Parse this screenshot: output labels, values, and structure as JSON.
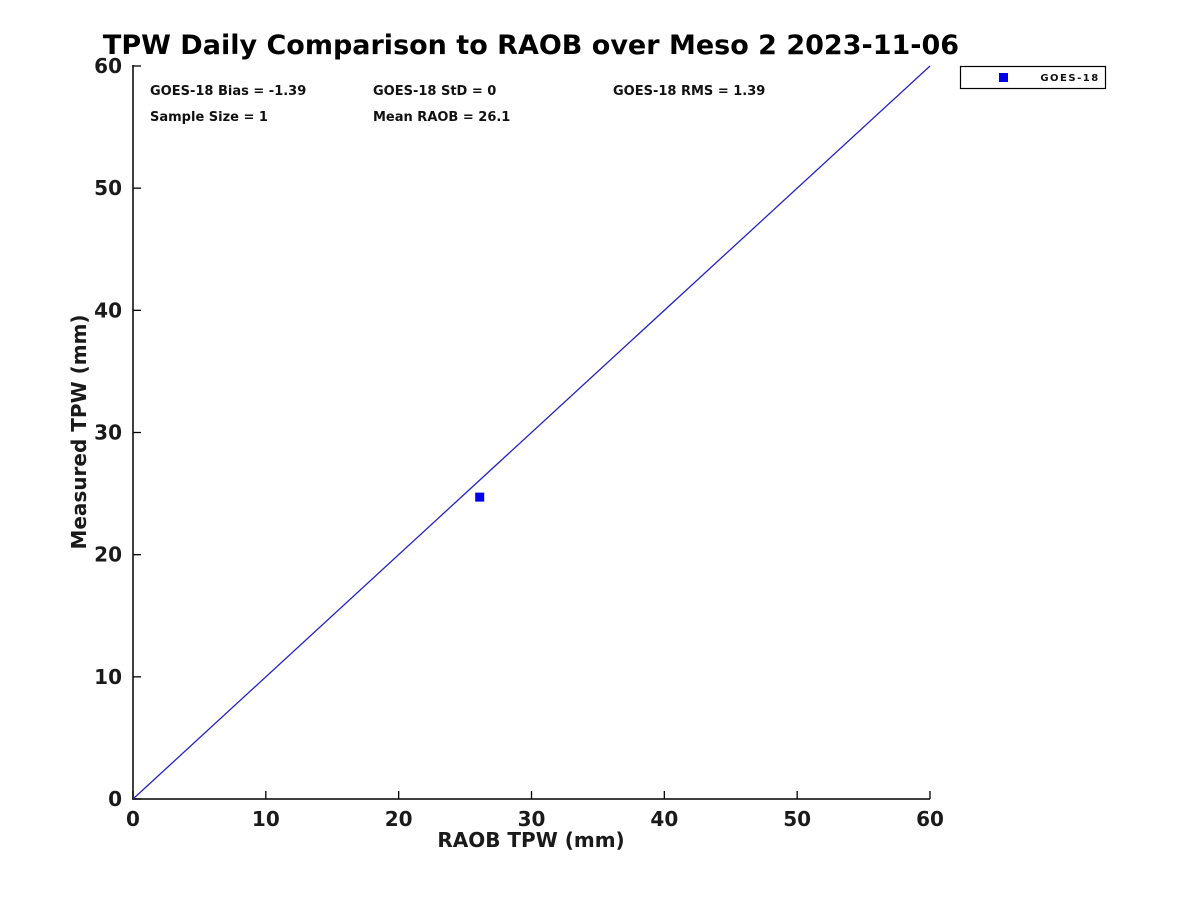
{
  "title": "TPW Daily Comparison to RAOB over Meso 2 2023-11-06",
  "stats": {
    "bias": "GOES-18 Bias = -1.39",
    "std": "GOES-18 StD = 0",
    "rms": "GOES-18 RMS = 1.39",
    "sample_size": "Sample Size = 1",
    "mean_raob": "Mean RAOB = 26.1"
  },
  "legend": {
    "label": "GOES-18",
    "marker_color": "#0000ee",
    "position": "top-right-outside"
  },
  "chart_data": {
    "type": "scatter",
    "title": "TPW Daily Comparison to RAOB over Meso 2 2023-11-06",
    "xlabel": "RAOB TPW (mm)",
    "ylabel": "Measured TPW (mm)",
    "xlim": [
      0,
      60
    ],
    "ylim": [
      0,
      60
    ],
    "x_ticks": [
      0,
      10,
      20,
      30,
      40,
      50,
      60
    ],
    "y_ticks": [
      0,
      10,
      20,
      30,
      40,
      50,
      60
    ],
    "grid": false,
    "series": [
      {
        "name": "GOES-18",
        "marker": "square",
        "color": "#0000ee",
        "points": [
          [
            26.1,
            24.71
          ]
        ]
      }
    ],
    "reference_line": {
      "name": "identity-line",
      "from": [
        0,
        0
      ],
      "to": [
        60,
        60
      ],
      "color": "#2222cc"
    },
    "annotations": {
      "goes18_bias": -1.39,
      "goes18_std": 0,
      "goes18_rms": 1.39,
      "sample_size": 1,
      "mean_raob": 26.1
    }
  }
}
